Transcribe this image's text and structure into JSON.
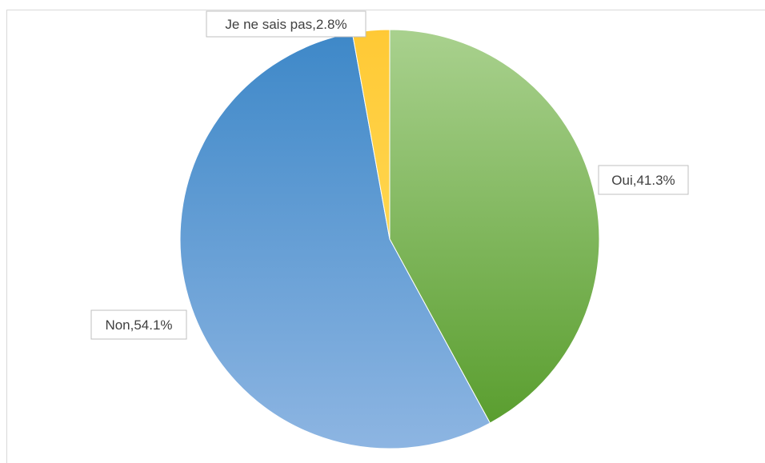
{
  "chart_data": {
    "type": "pie",
    "slices": [
      {
        "label": "Oui",
        "value": 41.3,
        "data_label": "Oui,41.3%",
        "color_top": "#a9d18e",
        "color_bottom": "#5a9e2f"
      },
      {
        "label": "Non",
        "value": 54.1,
        "data_label": "Non,54.1%",
        "color_top": "#3e88c8",
        "color_bottom": "#8db5e2"
      },
      {
        "label": "Je ne sais pas",
        "value": 2.8,
        "data_label": "Je ne sais pas,2.8%",
        "color_top": "#ffc935",
        "color_bottom": "#ffd64f"
      }
    ],
    "start_angle_deg": 0,
    "direction": "clockwise",
    "legend": "none",
    "title": ""
  }
}
